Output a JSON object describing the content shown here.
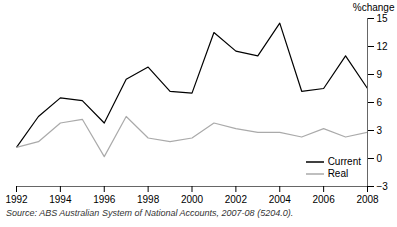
{
  "chart_data": {
    "type": "line",
    "ylabel": "%change",
    "caption": "Source: ABS Australian System of National Accounts, 2007-08 (5204.0).",
    "x": [
      1992,
      1993,
      1994,
      1995,
      1996,
      1997,
      1998,
      1999,
      2000,
      2001,
      2002,
      2003,
      2004,
      2005,
      2006,
      2007,
      2008
    ],
    "series": [
      {
        "name": "Current",
        "color": "#000000",
        "values": [
          1.2,
          4.5,
          6.5,
          6.2,
          3.8,
          8.5,
          9.8,
          7.2,
          7.0,
          13.5,
          11.5,
          11.0,
          14.5,
          7.2,
          7.5,
          11.0,
          7.5
        ]
      },
      {
        "name": "Real",
        "color": "#aaaaaa",
        "values": [
          1.2,
          1.8,
          3.8,
          4.2,
          0.2,
          4.5,
          2.2,
          1.8,
          2.2,
          3.8,
          3.2,
          2.8,
          2.8,
          2.3,
          3.2,
          2.3,
          2.8
        ]
      }
    ],
    "xlim": [
      1992,
      2008
    ],
    "xticks": [
      1992,
      1994,
      1996,
      1998,
      2000,
      2002,
      2004,
      2006,
      2008
    ],
    "ylim": [
      -3,
      15
    ],
    "yticks": [
      -3,
      0,
      3,
      6,
      9,
      12,
      15
    ],
    "grid": false,
    "legend": "lower right"
  }
}
